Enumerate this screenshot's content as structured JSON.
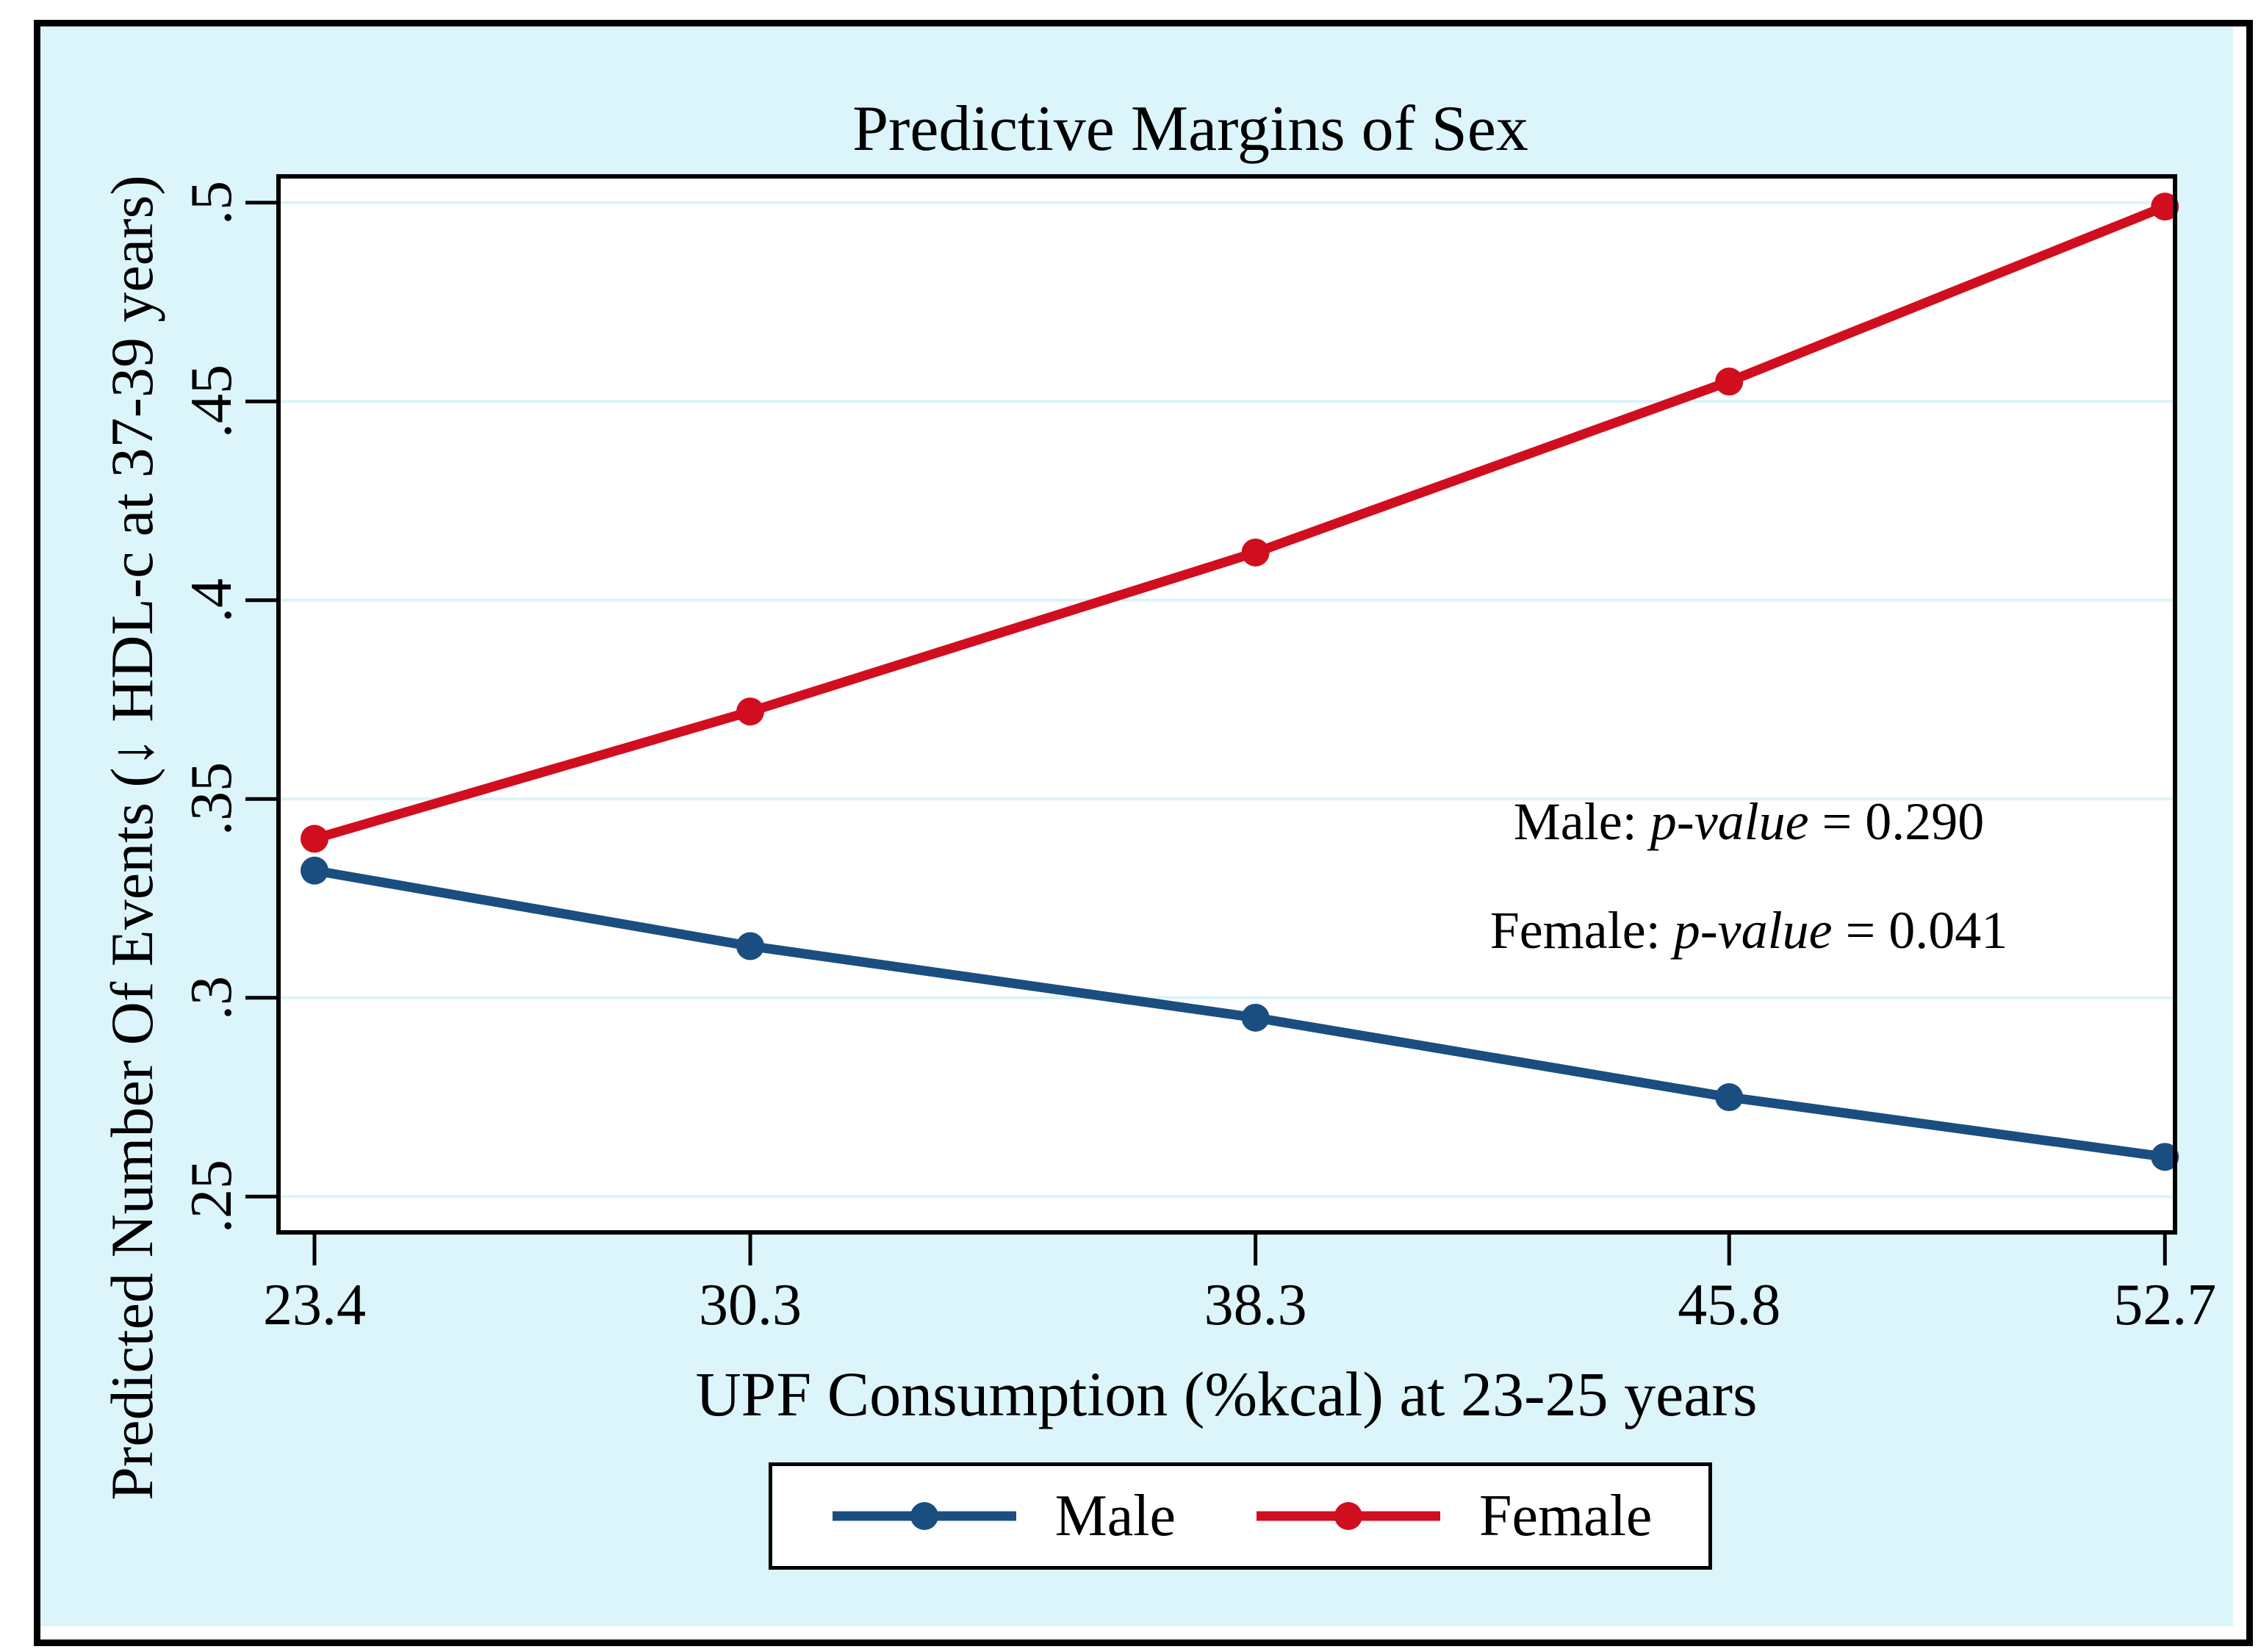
{
  "chart_data": {
    "type": "line",
    "title": "Predictive Margins of Sex",
    "xlabel": "UPF Consumption (%kcal) at 23-25 years",
    "ylabel": "Predicted Number Of Events (↓ HDL-c at 37-39 years)",
    "x": [
      23.4,
      30.3,
      38.3,
      45.8,
      52.7
    ],
    "x_tick_labels": [
      "23.4",
      "30.3",
      "38.3",
      "45.8",
      "52.7"
    ],
    "y_ticks": [
      0.25,
      0.3,
      0.35,
      0.4,
      0.45,
      0.5
    ],
    "y_tick_labels": [
      ".25",
      ".3",
      ".35",
      ".4",
      ".45",
      ".5"
    ],
    "xlim": [
      22.83,
      52.86
    ],
    "ylim": [
      0.241,
      0.5066
    ],
    "grid": true,
    "legend_position": "bottom-center",
    "series": [
      {
        "name": "Male",
        "color": "#1A4E80",
        "values": [
          0.332,
          0.313,
          0.295,
          0.275,
          0.26
        ]
      },
      {
        "name": "Female",
        "color": "#D00E1F",
        "values": [
          0.34,
          0.372,
          0.412,
          0.455,
          0.499
        ]
      }
    ],
    "annotations": [
      {
        "prefix": "Male: ",
        "italic": "p-value",
        "suffix": " = 0.290"
      },
      {
        "prefix": "Female: ",
        "italic": "p-value",
        "suffix": " = 0.041"
      }
    ]
  },
  "colors": {
    "background": "#DCF5FA",
    "plot_background": "#FFFFFF",
    "gridline": "#DBF3F8",
    "axis": "#000000",
    "frame_border": "#000000"
  }
}
